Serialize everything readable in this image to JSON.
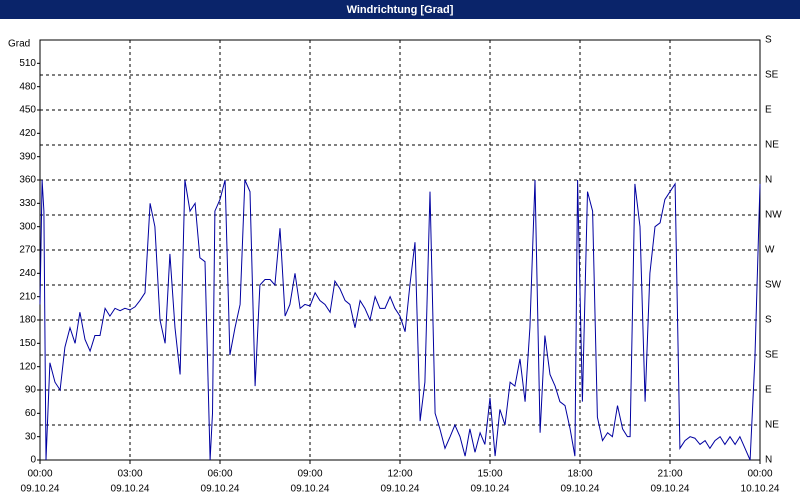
{
  "chart_data": {
    "type": "line",
    "title": "Windrichtung [Grad]",
    "y_label": "Grad",
    "x": [
      0.0,
      0.07,
      0.13,
      0.2,
      0.33,
      0.5,
      0.67,
      0.83,
      1.0,
      1.17,
      1.33,
      1.5,
      1.67,
      1.83,
      2.0,
      2.17,
      2.33,
      2.5,
      2.67,
      2.83,
      3.0,
      3.17,
      3.33,
      3.5,
      3.67,
      3.83,
      4.0,
      4.17,
      4.33,
      4.5,
      4.67,
      4.83,
      5.0,
      5.17,
      5.33,
      5.5,
      5.67,
      5.75,
      5.83,
      6.0,
      6.17,
      6.33,
      6.5,
      6.67,
      6.83,
      7.0,
      7.17,
      7.33,
      7.5,
      7.67,
      7.83,
      8.0,
      8.17,
      8.33,
      8.5,
      8.67,
      8.83,
      9.0,
      9.17,
      9.33,
      9.5,
      9.67,
      9.83,
      10.0,
      10.17,
      10.33,
      10.5,
      10.67,
      10.83,
      11.0,
      11.17,
      11.33,
      11.5,
      11.67,
      11.83,
      12.0,
      12.17,
      12.33,
      12.5,
      12.67,
      12.83,
      13.0,
      13.17,
      13.33,
      13.5,
      13.67,
      13.83,
      14.0,
      14.17,
      14.33,
      14.5,
      14.67,
      14.83,
      15.0,
      15.17,
      15.33,
      15.5,
      15.67,
      15.83,
      16.0,
      16.17,
      16.33,
      16.5,
      16.67,
      16.83,
      17.0,
      17.17,
      17.33,
      17.5,
      17.67,
      17.83,
      17.92,
      18.08,
      18.25,
      18.42,
      18.58,
      18.75,
      18.92,
      19.08,
      19.25,
      19.42,
      19.58,
      19.67,
      19.83,
      20.0,
      20.17,
      20.33,
      20.5,
      20.67,
      20.83,
      21.0,
      21.17,
      21.33,
      21.5,
      21.67,
      21.83,
      22.0,
      22.17,
      22.33,
      22.5,
      22.67,
      22.83,
      23.0,
      23.17,
      23.33,
      23.5,
      23.67,
      23.83,
      24.0
    ],
    "series": [
      {
        "name": "Windrichtung",
        "color": "#0000a0",
        "values": [
          200,
          360,
          320,
          0,
          125,
          100,
          90,
          145,
          170,
          150,
          190,
          155,
          140,
          160,
          160,
          195,
          185,
          195,
          192,
          195,
          193,
          197,
          205,
          215,
          330,
          300,
          180,
          150,
          265,
          170,
          110,
          360,
          320,
          330,
          260,
          255,
          0,
          60,
          320,
          335,
          360,
          135,
          170,
          200,
          360,
          345,
          95,
          225,
          232,
          232,
          225,
          298,
          185,
          200,
          240,
          195,
          200,
          198,
          215,
          205,
          200,
          190,
          230,
          220,
          205,
          200,
          170,
          205,
          195,
          180,
          210,
          195,
          195,
          210,
          195,
          185,
          165,
          225,
          280,
          50,
          100,
          345,
          60,
          40,
          15,
          30,
          45,
          30,
          5,
          40,
          10,
          35,
          20,
          80,
          5,
          65,
          45,
          100,
          95,
          130,
          75,
          170,
          360,
          35,
          160,
          110,
          95,
          75,
          70,
          40,
          5,
          360,
          75,
          345,
          320,
          55,
          25,
          35,
          30,
          70,
          40,
          30,
          30,
          355,
          300,
          75,
          240,
          300,
          305,
          335,
          345,
          355,
          15,
          25,
          30,
          28,
          20,
          25,
          15,
          25,
          30,
          20,
          30,
          20,
          30,
          15,
          0,
          130,
          355
        ]
      }
    ],
    "xlim": [
      0,
      24
    ],
    "xticks": [
      {
        "value": 0,
        "label": "00:00",
        "date": "09.10.24"
      },
      {
        "value": 3,
        "label": "03:00",
        "date": "09.10.24"
      },
      {
        "value": 6,
        "label": "06:00",
        "date": "09.10.24"
      },
      {
        "value": 9,
        "label": "09:00",
        "date": "09.10.24"
      },
      {
        "value": 12,
        "label": "12:00",
        "date": "09.10.24"
      },
      {
        "value": 15,
        "label": "15:00",
        "date": "09.10.24"
      },
      {
        "value": 18,
        "label": "18:00",
        "date": "09.10.24"
      },
      {
        "value": 21,
        "label": "21:00",
        "date": "09.10.24"
      },
      {
        "value": 24,
        "label": "00:00",
        "date": "10.10.24"
      }
    ],
    "ylim": [
      0,
      540
    ],
    "yticks": [
      0,
      30,
      60,
      90,
      120,
      150,
      180,
      210,
      240,
      270,
      300,
      330,
      360,
      390,
      420,
      450,
      480,
      510
    ],
    "y2lim": [
      0,
      540
    ],
    "y2ticks": [
      {
        "value": 0,
        "label": "N"
      },
      {
        "value": 45,
        "label": "NE"
      },
      {
        "value": 90,
        "label": "E"
      },
      {
        "value": 135,
        "label": "SE"
      },
      {
        "value": 180,
        "label": "S"
      },
      {
        "value": 225,
        "label": "SW"
      },
      {
        "value": 270,
        "label": "W"
      },
      {
        "value": 315,
        "label": "NW"
      },
      {
        "value": 360,
        "label": "N"
      },
      {
        "value": 405,
        "label": "NE"
      },
      {
        "value": 450,
        "label": "E"
      },
      {
        "value": 495,
        "label": "SE"
      },
      {
        "value": 540,
        "label": "S"
      }
    ],
    "grid": true
  }
}
